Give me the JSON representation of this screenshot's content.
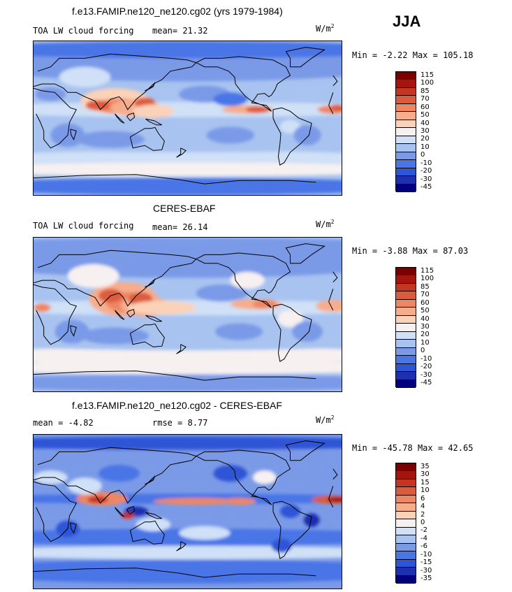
{
  "season": "JJA",
  "colors": {
    "main": [
      "#000080",
      "#1e2fb0",
      "#2e55d5",
      "#4a75e6",
      "#7a9ae8",
      "#a8c3f0",
      "#cfe0f7",
      "#f6f0f0",
      "#fbd2b8",
      "#f6ad8c",
      "#ee8663",
      "#dd5b3d",
      "#c43522",
      "#a3150d",
      "#7a0000"
    ],
    "diff": [
      "#000080",
      "#1e2fb0",
      "#2e55d5",
      "#4a75e6",
      "#7a9ae8",
      "#a8c3f0",
      "#cfe0f7",
      "#f6f0f0",
      "#fbd2b8",
      "#f6ad8c",
      "#ee8663",
      "#dd5b3d",
      "#c43522",
      "#a3150d",
      "#7a0000"
    ]
  },
  "chart_data": [
    {
      "type": "heatmap",
      "title": "f.e13.FAMIP.ne120_ne120.cg02 (yrs 1979-1984)",
      "variable": "TOA LW cloud forcing",
      "stat_label": "mean=",
      "stat_value": "21.32",
      "units": "W/m",
      "units_exp": "2",
      "min_label": "Min =",
      "min": "-2.22",
      "max_label": "Max =",
      "max": "105.18",
      "levels": [
        "-45",
        "-30",
        "-20",
        "-10",
        "0",
        "10",
        "20",
        "30",
        "40",
        "50",
        "60",
        "70",
        "85",
        "100",
        "115"
      ]
    },
    {
      "type": "heatmap",
      "title": "CERES-EBAF",
      "variable": "TOA LW cloud forcing",
      "stat_label": "mean=",
      "stat_value": "26.14",
      "units": "W/m",
      "units_exp": "2",
      "min_label": "Min =",
      "min": "-3.88",
      "max_label": "Max =",
      "max": "87.03",
      "levels": [
        "-45",
        "-30",
        "-20",
        "-10",
        "0",
        "10",
        "20",
        "30",
        "40",
        "50",
        "60",
        "70",
        "85",
        "100",
        "115"
      ]
    },
    {
      "type": "heatmap",
      "title": "f.e13.FAMIP.ne120_ne120.cg02 - CERES-EBAF",
      "variable": "",
      "stat_label": "mean =",
      "stat_value": "-4.82",
      "stat2_label": "rmse =",
      "stat2_value": "8.77",
      "units": "W/m",
      "units_exp": "2",
      "min_label": "Min =",
      "min": "-45.78",
      "max_label": "Max =",
      "max": "42.65",
      "levels": [
        "-35",
        "-30",
        "-15",
        "-10",
        "-6",
        "-4",
        "-2",
        "0",
        "2",
        "4",
        "6",
        "10",
        "15",
        "30",
        "35"
      ]
    }
  ]
}
